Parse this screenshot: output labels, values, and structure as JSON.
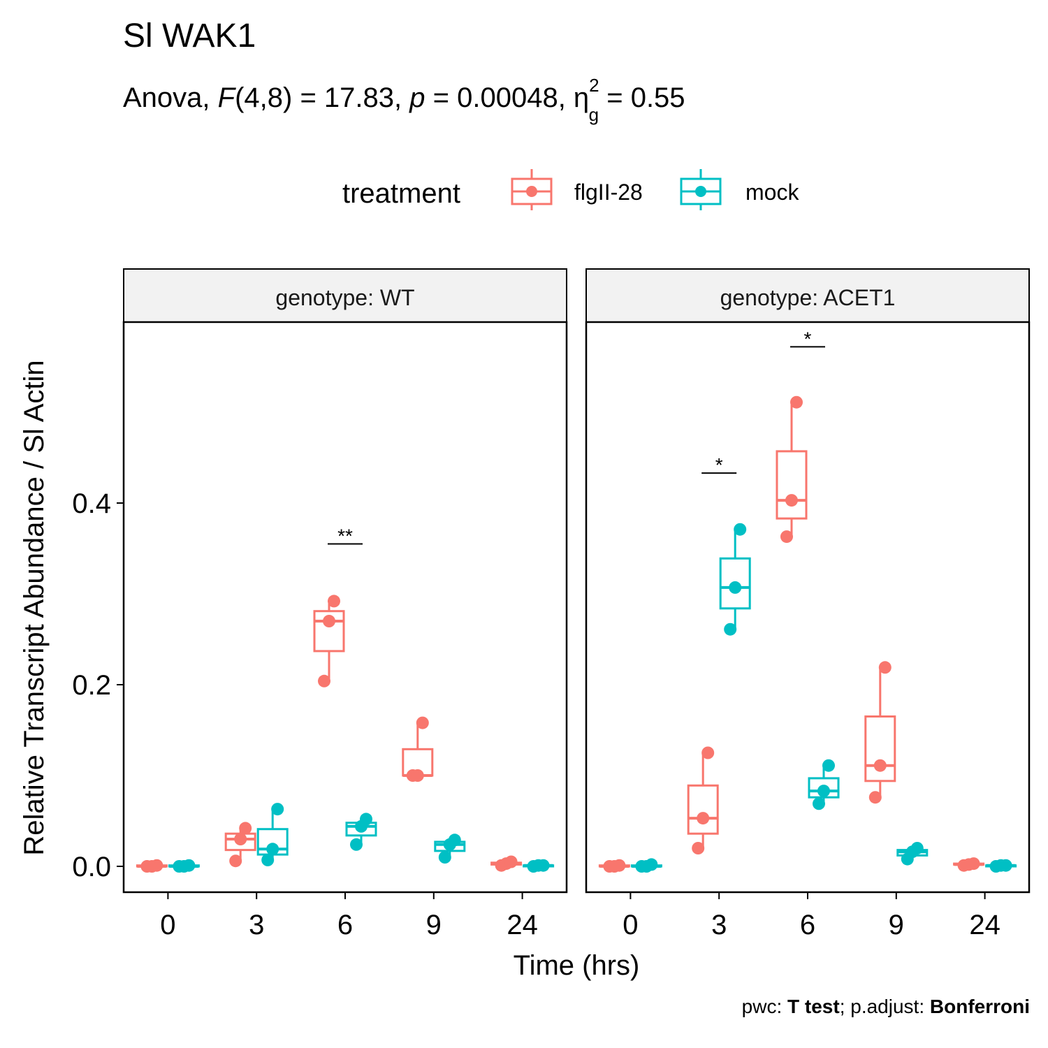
{
  "chart_data": {
    "type": "box",
    "title": "Sl WAK1",
    "subtitle": {
      "prefix": "Anova, ",
      "F": "F",
      "df": "(4,8)",
      "F_eq": " = 17.83, ",
      "p": "p",
      "p_eq": " = 0.00048, ",
      "eta": "η",
      "eta_sup": "2",
      "eta_sub": "g",
      "eta_eq": " = 0.55"
    },
    "xlabel": "Time (hrs)",
    "ylabel": "Relative Transcript Abundance / Sl Actin",
    "legend": {
      "title": "treatment",
      "position": "top",
      "entries": [
        {
          "name": "flgII-28",
          "color": "#F8766D"
        },
        {
          "name": "mock",
          "color": "#00BFC4"
        }
      ]
    },
    "categories": [
      "0",
      "3",
      "6",
      "9",
      "24"
    ],
    "ylim": [
      -0.02,
      0.6
    ],
    "yticks": [
      0.0,
      0.2,
      0.4
    ],
    "ytick_labels": [
      "0.0",
      "0.2",
      "0.4"
    ],
    "grid": false,
    "panels": [
      {
        "label": "genotype: WT",
        "series": [
          {
            "name": "flgII-28",
            "boxes": [
              {
                "x": "0",
                "min": 0.0,
                "q1": 0.0,
                "median": 0.0,
                "q3": 0.001,
                "max": 0.001,
                "points": [
                  0.0,
                  0.0,
                  0.001
                ]
              },
              {
                "x": "3",
                "min": 0.006,
                "q1": 0.018,
                "median": 0.03,
                "q3": 0.036,
                "max": 0.042,
                "points": [
                  0.006,
                  0.03,
                  0.042
                ]
              },
              {
                "x": "6",
                "min": 0.204,
                "q1": 0.237,
                "median": 0.27,
                "q3": 0.281,
                "max": 0.292,
                "points": [
                  0.204,
                  0.27,
                  0.292
                ]
              },
              {
                "x": "9",
                "min": 0.1,
                "q1": 0.1,
                "median": 0.1,
                "q3": 0.129,
                "max": 0.158,
                "points": [
                  0.1,
                  0.1,
                  0.158
                ]
              },
              {
                "x": "24",
                "min": 0.001,
                "q1": 0.002,
                "median": 0.003,
                "q3": 0.004,
                "max": 0.005,
                "points": [
                  0.001,
                  0.003,
                  0.005
                ]
              }
            ]
          },
          {
            "name": "mock",
            "boxes": [
              {
                "x": "0",
                "min": 0.0,
                "q1": 0.0,
                "median": 0.0,
                "q3": 0.001,
                "max": 0.001,
                "points": [
                  0.0,
                  0.0,
                  0.001
                ]
              },
              {
                "x": "3",
                "min": 0.007,
                "q1": 0.013,
                "median": 0.019,
                "q3": 0.041,
                "max": 0.063,
                "points": [
                  0.007,
                  0.019,
                  0.063
                ]
              },
              {
                "x": "6",
                "min": 0.024,
                "q1": 0.034,
                "median": 0.044,
                "q3": 0.048,
                "max": 0.052,
                "points": [
                  0.024,
                  0.044,
                  0.052
                ]
              },
              {
                "x": "9",
                "min": 0.01,
                "q1": 0.017,
                "median": 0.024,
                "q3": 0.027,
                "max": 0.029,
                "points": [
                  0.01,
                  0.024,
                  0.029
                ]
              },
              {
                "x": "24",
                "min": 0.0,
                "q1": 0.0,
                "median": 0.001,
                "q3": 0.001,
                "max": 0.001,
                "points": [
                  0.0,
                  0.001,
                  0.001
                ]
              }
            ]
          }
        ],
        "significance": [
          {
            "x": "6",
            "label": "**",
            "y": 0.355
          }
        ]
      },
      {
        "label": "genotype: ACET1",
        "series": [
          {
            "name": "flgII-28",
            "boxes": [
              {
                "x": "0",
                "min": 0.0,
                "q1": 0.0,
                "median": 0.0,
                "q3": 0.001,
                "max": 0.001,
                "points": [
                  0.0,
                  0.0,
                  0.001
                ]
              },
              {
                "x": "3",
                "min": 0.02,
                "q1": 0.036,
                "median": 0.053,
                "q3": 0.089,
                "max": 0.125,
                "points": [
                  0.02,
                  0.053,
                  0.125
                ]
              },
              {
                "x": "6",
                "min": 0.363,
                "q1": 0.383,
                "median": 0.403,
                "q3": 0.457,
                "max": 0.511,
                "points": [
                  0.363,
                  0.403,
                  0.511
                ]
              },
              {
                "x": "9",
                "min": 0.076,
                "q1": 0.094,
                "median": 0.111,
                "q3": 0.165,
                "max": 0.219,
                "points": [
                  0.076,
                  0.111,
                  0.219
                ]
              },
              {
                "x": "24",
                "min": 0.001,
                "q1": 0.002,
                "median": 0.002,
                "q3": 0.003,
                "max": 0.003,
                "points": [
                  0.001,
                  0.002,
                  0.003
                ]
              }
            ]
          },
          {
            "name": "mock",
            "boxes": [
              {
                "x": "0",
                "min": 0.0,
                "q1": 0.0,
                "median": 0.0,
                "q3": 0.001,
                "max": 0.002,
                "points": [
                  0.0,
                  0.0,
                  0.002
                ]
              },
              {
                "x": "3",
                "min": 0.261,
                "q1": 0.284,
                "median": 0.307,
                "q3": 0.339,
                "max": 0.371,
                "points": [
                  0.261,
                  0.307,
                  0.371
                ]
              },
              {
                "x": "6",
                "min": 0.069,
                "q1": 0.076,
                "median": 0.083,
                "q3": 0.097,
                "max": 0.111,
                "points": [
                  0.069,
                  0.083,
                  0.111
                ]
              },
              {
                "x": "9",
                "min": 0.008,
                "q1": 0.012,
                "median": 0.016,
                "q3": 0.018,
                "max": 0.02,
                "points": [
                  0.008,
                  0.016,
                  0.02
                ]
              },
              {
                "x": "24",
                "min": 0.0,
                "q1": 0.0,
                "median": 0.001,
                "q3": 0.001,
                "max": 0.001,
                "points": [
                  0.0,
                  0.001,
                  0.001
                ]
              }
            ]
          }
        ],
        "significance": [
          {
            "x": "3",
            "label": "*",
            "y": 0.433
          },
          {
            "x": "6",
            "label": "*",
            "y": 0.572
          }
        ]
      }
    ],
    "caption": [
      {
        "text": "pwc: ",
        "bold": false
      },
      {
        "text": "T test",
        "bold": true
      },
      {
        "text": "; p.adjust: ",
        "bold": false
      },
      {
        "text": "Bonferroni",
        "bold": true
      }
    ]
  }
}
